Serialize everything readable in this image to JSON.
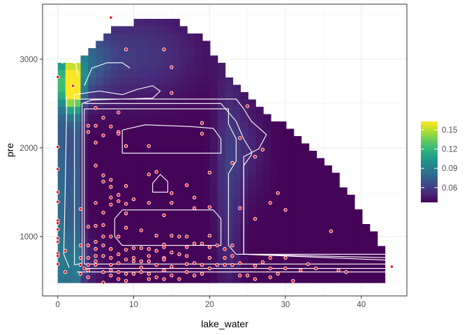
{
  "chart_data": {
    "type": "heatmap",
    "xlabel": "lake_water",
    "ylabel": "pre",
    "xlim": [
      -2,
      46
    ],
    "ylim": [
      330,
      3620
    ],
    "x_ticks": [
      0,
      10,
      20,
      30,
      40
    ],
    "y_ticks": [
      1000,
      2000,
      3000
    ],
    "grid": true,
    "legend": {
      "position": "right",
      "ticks": [
        0.06,
        0.09,
        0.12,
        0.15
      ],
      "min": 0.037,
      "max": 0.163,
      "palette": [
        "#440154",
        "#482878",
        "#3e4989",
        "#31688e",
        "#26828e",
        "#1f9e89",
        "#35b779",
        "#6ece58",
        "#b5de2b",
        "#fde725"
      ]
    },
    "density_surface": {
      "domain_boundary": [
        [
          0.5,
          2500
        ],
        [
          0.5,
          2920
        ],
        [
          1.5,
          2920
        ],
        [
          3.5,
          3050
        ],
        [
          6.5,
          3280
        ],
        [
          8.5,
          3380
        ],
        [
          10.5,
          3420
        ],
        [
          15.5,
          3420
        ],
        [
          19.5,
          3200
        ],
        [
          23.5,
          2700
        ],
        [
          30.5,
          2200
        ],
        [
          37.5,
          1600
        ],
        [
          43.5,
          780
        ],
        [
          43.5,
          450
        ],
        [
          4.5,
          450
        ],
        [
          0.5,
          450
        ]
      ],
      "features": [
        {
          "x": 1.8,
          "y": 2700,
          "h": 0.125,
          "sx": 0.9,
          "sy": 190
        },
        {
          "x": 0.8,
          "y": 1200,
          "h": 0.045,
          "sx": 0.9,
          "sy": 1400
        },
        {
          "x": 2.6,
          "y": 1500,
          "h": 0.03,
          "sx": 0.5,
          "sy": 1800
        },
        {
          "x": 3.0,
          "y": 2950,
          "h": 0.035,
          "sx": 2.5,
          "sy": 280
        },
        {
          "x": 10.0,
          "y": 3050,
          "h": 0.02,
          "sx": 6.0,
          "sy": 350
        },
        {
          "x": 22.5,
          "y": 1600,
          "h": 0.018,
          "sx": 1.2,
          "sy": 900
        },
        {
          "x": 24.8,
          "y": 2000,
          "h": 0.012,
          "sx": 2.0,
          "sy": 400
        },
        {
          "x": 2.5,
          "y": 650,
          "h": 0.018,
          "sx": 2.0,
          "sy": 250
        }
      ]
    },
    "contours": [
      [
        [
          8.5,
          1300
        ],
        [
          20.5,
          1300
        ],
        [
          21.5,
          1200
        ],
        [
          21.5,
          900
        ],
        [
          8.5,
          900
        ],
        [
          7.5,
          1000
        ],
        [
          7.5,
          1200
        ],
        [
          8.5,
          1300
        ]
      ],
      [
        [
          8.5,
          2200
        ],
        [
          11.5,
          2260
        ],
        [
          17.5,
          2240
        ],
        [
          20.5,
          2220
        ],
        [
          21.5,
          2100
        ],
        [
          21.5,
          1940
        ],
        [
          8.5,
          1940
        ],
        [
          8.5,
          2100
        ],
        [
          8.5,
          2200
        ]
      ],
      [
        [
          12.5,
          1600
        ],
        [
          13.5,
          1700
        ],
        [
          14.5,
          1620
        ],
        [
          14.5,
          1500
        ],
        [
          12.5,
          1500
        ],
        [
          12.5,
          1600
        ]
      ],
      [
        [
          3.5,
          2440
        ],
        [
          22.5,
          2440
        ],
        [
          22.5,
          2270
        ],
        [
          23.5,
          2100
        ],
        [
          23.5,
          1850
        ],
        [
          22.5,
          1710
        ],
        [
          22.5,
          1400
        ],
        [
          22.5,
          900
        ],
        [
          23.5,
          800
        ],
        [
          44.5,
          800
        ],
        [
          44.5,
          690
        ],
        [
          3.5,
          690
        ],
        [
          3.5,
          2440
        ]
      ],
      [
        [
          3.5,
          2500
        ],
        [
          21.5,
          2500
        ],
        [
          22.5,
          2400
        ],
        [
          23.5,
          2300
        ],
        [
          24.5,
          2100
        ],
        [
          25.5,
          1960
        ],
        [
          25.5,
          1920
        ],
        [
          24.5,
          1800
        ],
        [
          24.5,
          1400
        ],
        [
          24.5,
          1000
        ],
        [
          24.5,
          800
        ],
        [
          44.5,
          760
        ],
        [
          44.5,
          640
        ],
        [
          3.5,
          640
        ]
      ],
      [
        [
          2.5,
          2550
        ],
        [
          23.5,
          2550
        ],
        [
          24.5,
          2440
        ],
        [
          25.5,
          2300
        ],
        [
          27.5,
          2150
        ],
        [
          26.5,
          1990
        ],
        [
          24.5,
          1900
        ],
        [
          24.5,
          1500
        ],
        [
          24.5,
          800
        ],
        [
          44.5,
          730
        ],
        [
          44.5,
          600
        ],
        [
          2.5,
          600
        ]
      ],
      [
        [
          2.2,
          2600
        ],
        [
          5.5,
          2640
        ],
        [
          8.5,
          2600
        ],
        [
          10.5,
          2660
        ],
        [
          12.5,
          2700
        ],
        [
          13.5,
          2640
        ],
        [
          12.5,
          2560
        ],
        [
          4.5,
          2540
        ],
        [
          3.2,
          2500
        ],
        [
          3.2,
          1200
        ],
        [
          3.2,
          700
        ],
        [
          2.2,
          680
        ],
        [
          2.2,
          2600
        ]
      ],
      [
        [
          1.2,
          2580
        ],
        [
          1.0,
          1600
        ],
        [
          0.8,
          800
        ],
        [
          1.5,
          650
        ]
      ],
      [
        [
          3.5,
          2700
        ],
        [
          4.5,
          2900
        ],
        [
          6.5,
          2960
        ],
        [
          8.5,
          2960
        ],
        [
          9.5,
          2900
        ]
      ],
      [
        [
          0.5,
          2950
        ],
        [
          1.2,
          2980
        ],
        [
          2.4,
          2950
        ],
        [
          2.6,
          2800
        ]
      ]
    ],
    "points": [
      [
        0,
        2800
      ],
      [
        0,
        2010
      ],
      [
        0,
        1760
      ],
      [
        0,
        1500
      ],
      [
        0,
        1390
      ],
      [
        0,
        1180
      ],
      [
        0,
        1150
      ],
      [
        0,
        1080
      ],
      [
        0,
        980
      ],
      [
        0,
        940
      ],
      [
        0,
        810
      ],
      [
        0,
        780
      ],
      [
        0,
        690
      ],
      [
        1,
        600
      ],
      [
        1,
        840
      ],
      [
        2,
        2700
      ],
      [
        3,
        1310
      ],
      [
        3,
        900
      ],
      [
        3,
        760
      ],
      [
        3,
        680
      ],
      [
        3,
        580
      ],
      [
        3.5,
        640
      ],
      [
        4,
        2250
      ],
      [
        4,
        2180
      ],
      [
        4,
        1110
      ],
      [
        4,
        900
      ],
      [
        4,
        760
      ],
      [
        4,
        680
      ],
      [
        4,
        620
      ],
      [
        4,
        540
      ],
      [
        5,
        2450
      ],
      [
        5,
        2250
      ],
      [
        5,
        2060
      ],
      [
        5,
        1800
      ],
      [
        5,
        1380
      ],
      [
        5,
        1120
      ],
      [
        5,
        940
      ],
      [
        5,
        860
      ],
      [
        5,
        780
      ],
      [
        5,
        720
      ],
      [
        5,
        680
      ],
      [
        6,
        2340
      ],
      [
        6,
        2140
      ],
      [
        6,
        1690
      ],
      [
        6,
        1620
      ],
      [
        6,
        1270
      ],
      [
        6,
        1130
      ],
      [
        6,
        1000
      ],
      [
        6,
        900
      ],
      [
        6,
        780
      ],
      [
        6,
        600
      ],
      [
        6,
        480
      ],
      [
        7,
        3470
      ],
      [
        7,
        2240
      ],
      [
        7,
        1640
      ],
      [
        7,
        1560
      ],
      [
        7,
        1440
      ],
      [
        7,
        1360
      ],
      [
        7,
        1000
      ],
      [
        7,
        860
      ],
      [
        7,
        760
      ],
      [
        7,
        680
      ],
      [
        7,
        620
      ],
      [
        7,
        560
      ],
      [
        8,
        2400
      ],
      [
        8,
        2180
      ],
      [
        8,
        2160
      ],
      [
        8,
        1470
      ],
      [
        8,
        1400
      ],
      [
        8,
        1000
      ],
      [
        8,
        800
      ],
      [
        8,
        700
      ],
      [
        8,
        600
      ],
      [
        8,
        520
      ],
      [
        9,
        3110
      ],
      [
        9,
        2020
      ],
      [
        9,
        1570
      ],
      [
        9,
        1370
      ],
      [
        9,
        1260
      ],
      [
        9,
        1100
      ],
      [
        9,
        850
      ],
      [
        9,
        740
      ],
      [
        9,
        580
      ],
      [
        9,
        500
      ],
      [
        10,
        1420
      ],
      [
        10,
        870
      ],
      [
        10,
        760
      ],
      [
        10,
        720
      ],
      [
        10,
        580
      ],
      [
        11,
        1070
      ],
      [
        11,
        870
      ],
      [
        11,
        720
      ],
      [
        11,
        650
      ],
      [
        11,
        600
      ],
      [
        12,
        2020
      ],
      [
        12,
        1700
      ],
      [
        12,
        1380
      ],
      [
        12,
        860
      ],
      [
        12,
        780
      ],
      [
        12,
        720
      ],
      [
        12,
        580
      ],
      [
        12,
        520
      ],
      [
        13,
        1730
      ],
      [
        13,
        1010
      ],
      [
        13,
        840
      ],
      [
        13,
        680
      ],
      [
        13,
        540
      ],
      [
        14,
        3110
      ],
      [
        14,
        1240
      ],
      [
        14,
        910
      ],
      [
        14,
        880
      ],
      [
        14,
        760
      ],
      [
        14,
        740
      ],
      [
        14,
        620
      ],
      [
        14,
        520
      ],
      [
        15,
        2910
      ],
      [
        15,
        2620
      ],
      [
        15,
        1490
      ],
      [
        15,
        1380
      ],
      [
        15,
        1010
      ],
      [
        15,
        820
      ],
      [
        15,
        660
      ],
      [
        15,
        560
      ],
      [
        16,
        1000
      ],
      [
        16,
        800
      ],
      [
        16,
        520
      ],
      [
        17,
        1580
      ],
      [
        17,
        1000
      ],
      [
        17,
        880
      ],
      [
        17,
        780
      ],
      [
        17,
        690
      ],
      [
        17,
        600
      ],
      [
        18,
        1440
      ],
      [
        18,
        1320
      ],
      [
        18,
        920
      ],
      [
        18,
        700
      ],
      [
        18,
        560
      ],
      [
        19,
        2280
      ],
      [
        19,
        2160
      ],
      [
        19,
        920
      ],
      [
        19,
        680
      ],
      [
        19,
        580
      ],
      [
        20,
        1720
      ],
      [
        20,
        1330
      ],
      [
        20,
        1010
      ],
      [
        20,
        880
      ],
      [
        20,
        760
      ],
      [
        20,
        640
      ],
      [
        21,
        900
      ],
      [
        21,
        680
      ],
      [
        22,
        860
      ],
      [
        22,
        760
      ],
      [
        22,
        680
      ],
      [
        23,
        1830
      ],
      [
        23,
        900
      ],
      [
        23,
        780
      ],
      [
        23,
        680
      ],
      [
        24,
        2110
      ],
      [
        24,
        1320
      ],
      [
        24,
        700
      ],
      [
        24,
        560
      ],
      [
        25,
        2470
      ],
      [
        25,
        560
      ],
      [
        26,
        1900
      ],
      [
        26,
        1200
      ],
      [
        26,
        670
      ],
      [
        26,
        520
      ],
      [
        27,
        1980
      ],
      [
        27,
        710
      ],
      [
        28,
        1380
      ],
      [
        28,
        760
      ],
      [
        28,
        640
      ],
      [
        28,
        540
      ],
      [
        29,
        1490
      ],
      [
        29,
        580
      ],
      [
        30,
        1300
      ],
      [
        30,
        760
      ],
      [
        30,
        640
      ],
      [
        31,
        500
      ],
      [
        32,
        620
      ],
      [
        33,
        690
      ],
      [
        34,
        640
      ],
      [
        36,
        1060
      ],
      [
        37,
        620
      ],
      [
        38,
        600
      ],
      [
        44,
        660
      ]
    ]
  }
}
